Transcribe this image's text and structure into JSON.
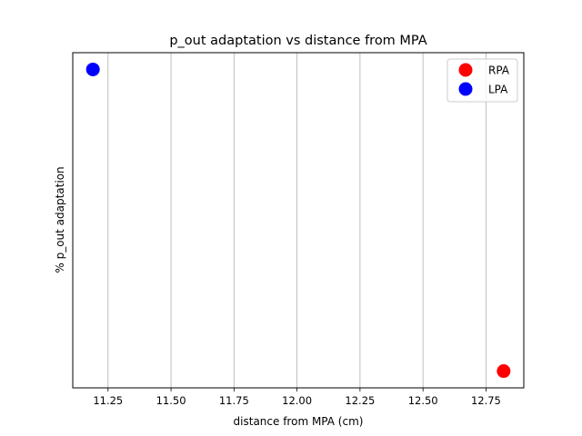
{
  "chart_data": {
    "type": "scatter",
    "title": "p_out adaptation vs distance from MPA",
    "xlabel": "distance from MPA (cm)",
    "ylabel": "% p_out adaptation",
    "xlim": [
      11.11,
      12.9
    ],
    "ylim": [
      0,
      1
    ],
    "xticks": [
      "11.25",
      "11.50",
      "11.75",
      "12.00",
      "12.25",
      "12.50",
      "12.75"
    ],
    "xtick_values": [
      11.25,
      11.5,
      11.75,
      12.0,
      12.25,
      12.5,
      12.75
    ],
    "grid": "x-only",
    "legend_position": "top-right",
    "series": [
      {
        "name": "RPA",
        "color": "#ff0000",
        "points": [
          {
            "x": 12.82,
            "y": 0.05
          }
        ]
      },
      {
        "name": "LPA",
        "color": "#0000ff",
        "points": [
          {
            "x": 11.19,
            "y": 0.95
          }
        ]
      }
    ]
  }
}
